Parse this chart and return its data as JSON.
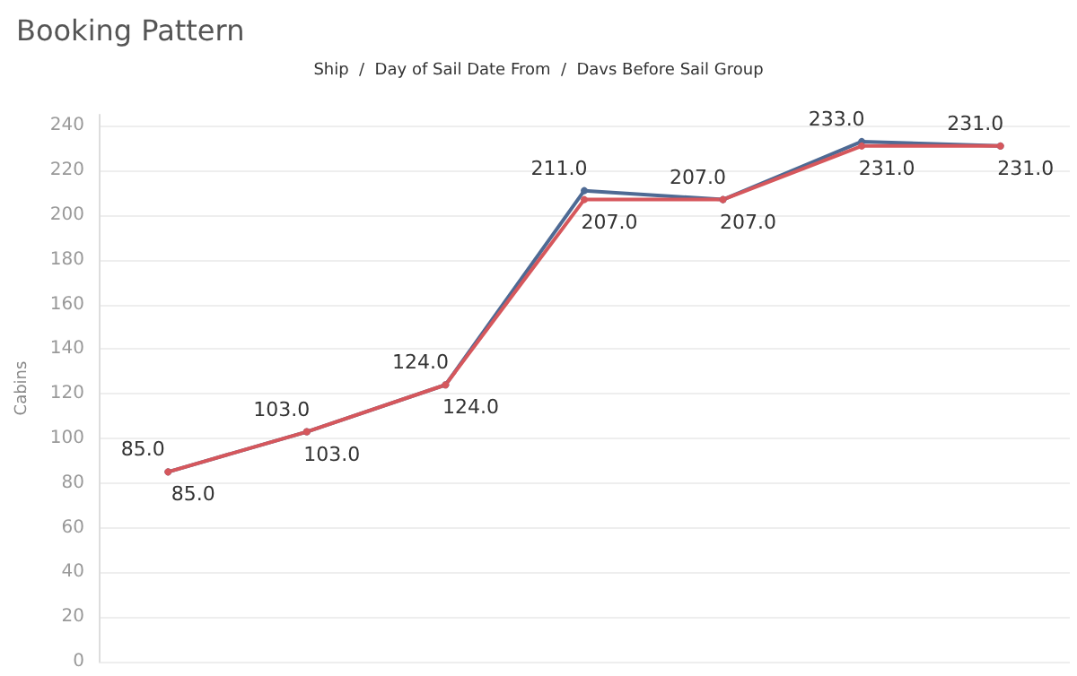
{
  "chart_data": {
    "type": "line",
    "title": "Booking Pattern",
    "subtitle": "Ship  /  Day of Sail Date From  /  Davs Before Sail Group",
    "ylabel": "Cabins",
    "categories": [
      null,
      null,
      null,
      null,
      null,
      null,
      null
    ],
    "series": [
      {
        "color": "#4e6a94",
        "values": [
          85,
          103,
          124,
          211,
          207,
          233,
          231
        ],
        "value_labels": [
          "85.0",
          "103.0",
          "124.0",
          "211.0",
          "207.0",
          "233.0",
          "231.0"
        ]
      },
      {
        "color": "#d6575c",
        "values": [
          85,
          103,
          124,
          207,
          207,
          231,
          231
        ],
        "value_labels": [
          "85.0",
          "103.0",
          "124.0",
          "207.0",
          "207.0",
          "231.0",
          "231.0"
        ]
      }
    ],
    "ylim": [
      0,
      245
    ],
    "yticks": [
      0,
      20,
      40,
      60,
      80,
      100,
      120,
      140,
      160,
      180,
      200,
      220,
      240
    ],
    "grid": "y",
    "marker": "circle",
    "line_style": "solid"
  }
}
